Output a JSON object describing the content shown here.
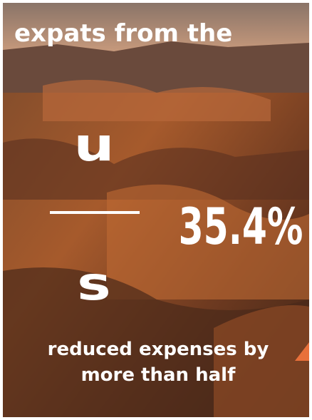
{
  "headline": "expats from the",
  "fraction": {
    "top": "u",
    "bottom": "s"
  },
  "stat": "35.4%",
  "caption": {
    "line1": "reduced expenses by",
    "line2": "more than half"
  }
}
